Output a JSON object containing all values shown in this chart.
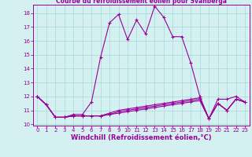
{
  "title": "Courbe du refroidissement éolien pour Svanberga",
  "xlabel": "Windchill (Refroidissement éolien,°C)",
  "x": [
    0,
    1,
    2,
    3,
    4,
    5,
    6,
    7,
    8,
    9,
    10,
    11,
    12,
    13,
    14,
    15,
    16,
    17,
    18,
    19,
    20,
    21,
    22,
    23
  ],
  "line1": [
    12.0,
    11.4,
    10.5,
    10.5,
    10.7,
    10.7,
    11.6,
    14.8,
    17.3,
    17.9,
    16.1,
    17.5,
    16.5,
    18.5,
    17.7,
    16.3,
    16.3,
    14.4,
    12.0,
    10.4,
    11.8,
    11.8,
    12.0,
    11.6
  ],
  "line2": [
    12.0,
    11.4,
    10.5,
    10.5,
    10.6,
    10.6,
    10.6,
    10.6,
    10.7,
    10.8,
    10.9,
    11.0,
    11.1,
    11.2,
    11.3,
    11.4,
    11.5,
    11.6,
    11.7,
    10.4,
    11.5,
    11.0,
    11.8,
    11.6
  ],
  "line3": [
    12.0,
    11.4,
    10.5,
    10.5,
    10.6,
    10.6,
    10.6,
    10.6,
    10.7,
    10.9,
    11.0,
    11.1,
    11.2,
    11.3,
    11.4,
    11.5,
    11.6,
    11.7,
    11.8,
    10.4,
    11.5,
    11.0,
    11.8,
    11.6
  ],
  "line4": [
    12.0,
    11.4,
    10.5,
    10.5,
    10.6,
    10.6,
    10.6,
    10.6,
    10.8,
    11.0,
    11.1,
    11.2,
    11.3,
    11.4,
    11.5,
    11.6,
    11.7,
    11.8,
    11.9,
    10.4,
    11.5,
    11.0,
    11.8,
    11.6
  ],
  "line_color": "#990099",
  "bg_color": "#d4f0f0",
  "grid_color": "#aadddd",
  "ylim": [
    9.9,
    18.6
  ],
  "xlim": [
    -0.5,
    23.5
  ],
  "yticks": [
    10,
    11,
    12,
    13,
    14,
    15,
    16,
    17,
    18
  ],
  "xticks": [
    0,
    1,
    2,
    3,
    4,
    5,
    6,
    7,
    8,
    9,
    10,
    11,
    12,
    13,
    14,
    15,
    16,
    17,
    18,
    19,
    20,
    21,
    22,
    23
  ],
  "tick_fontsize": 5.0,
  "xlabel_fontsize": 6.0
}
